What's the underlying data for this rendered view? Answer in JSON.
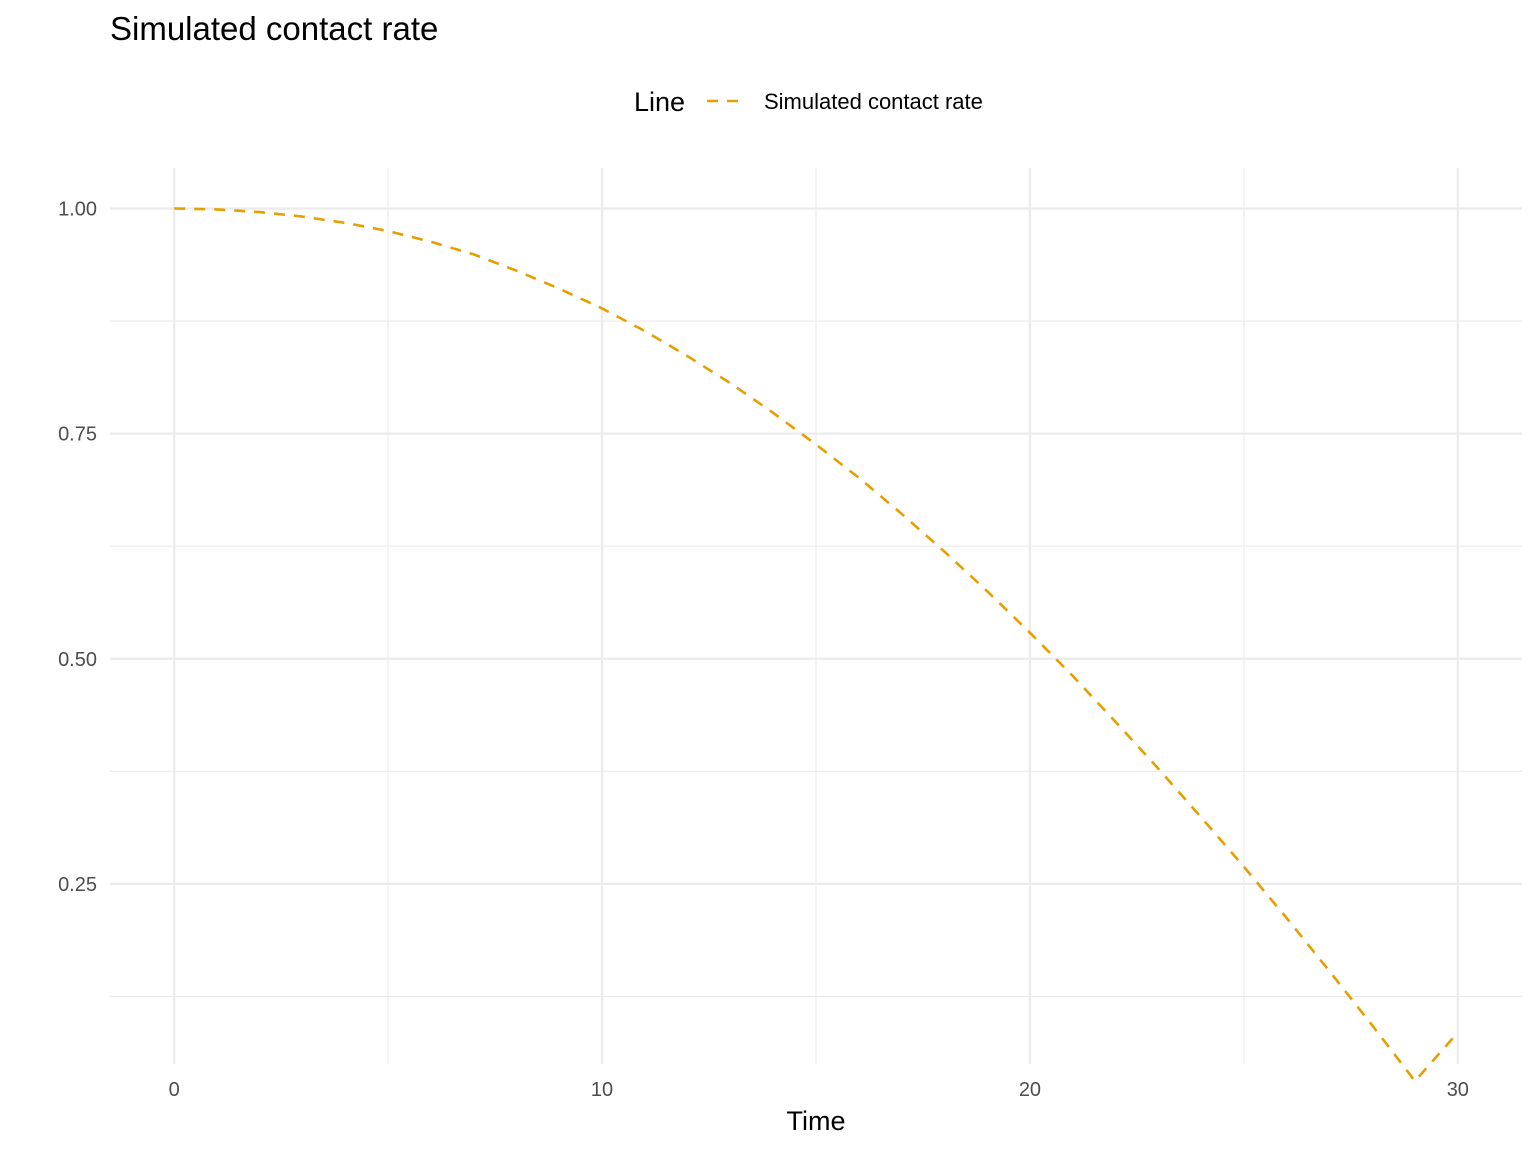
{
  "chart_data": {
    "type": "line",
    "title": "Simulated contact rate",
    "xlabel": "Time",
    "ylabel": "",
    "xlim": [
      -1.5,
      31.5
    ],
    "ylim": [
      0.05,
      1.045
    ],
    "x_major_ticks": [
      0,
      10,
      20,
      30
    ],
    "x_minor_ticks": [
      5,
      15,
      25
    ],
    "y_major_ticks": [
      0.25,
      0.5,
      0.75,
      1.0
    ],
    "y_minor_ticks": [
      0.125,
      0.375,
      0.625,
      0.875
    ],
    "x_tick_labels": [
      "0",
      "10",
      "20",
      "30"
    ],
    "y_tick_labels": [
      "0.25",
      "0.50",
      "0.75",
      "1.00"
    ],
    "grid": true,
    "legend": {
      "title": "Line",
      "position": "top",
      "entries": [
        {
          "label": "Simulated contact rate",
          "color": "#E69F00",
          "linetype": "dashed"
        }
      ]
    },
    "series": [
      {
        "name": "Simulated contact rate",
        "color": "#E69F00",
        "linetype": "dashed",
        "x": [
          0,
          1,
          2,
          3,
          4,
          5,
          6,
          7,
          8,
          9,
          10,
          11,
          12,
          13,
          14,
          15,
          16,
          17,
          18,
          19,
          20,
          21,
          22,
          23,
          24,
          25,
          26,
          27,
          28,
          29,
          30
        ],
        "values": [
          1.0,
          0.999,
          0.996,
          0.991,
          0.984,
          0.975,
          0.963,
          0.949,
          0.931,
          0.911,
          0.889,
          0.864,
          0.836,
          0.806,
          0.773,
          0.738,
          0.701,
          0.661,
          0.619,
          0.575,
          0.529,
          0.481,
          0.43,
          0.378,
          0.324,
          0.269,
          0.212,
          0.153,
          0.093,
          0.031,
          0.085
        ]
      }
    ]
  }
}
